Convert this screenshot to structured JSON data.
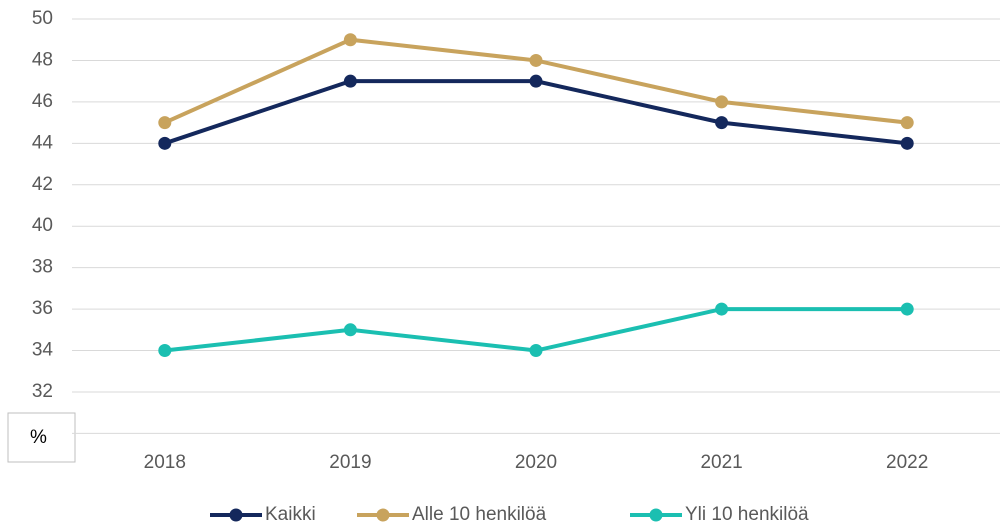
{
  "chart_data": {
    "type": "line",
    "y_label": "%",
    "categories": [
      "2018",
      "2019",
      "2020",
      "2021",
      "2022"
    ],
    "series": [
      {
        "name": "Kaikki",
        "color": "#14285c",
        "values": [
          44,
          47,
          47,
          45,
          44
        ]
      },
      {
        "name": "Alle 10 henkilöä",
        "color": "#c8a35d",
        "values": [
          45,
          49,
          48,
          46,
          45
        ]
      },
      {
        "name": "Yli 10 henkilöä",
        "color": "#1bbfb1",
        "values": [
          34,
          35,
          34,
          36,
          36
        ]
      }
    ],
    "ylim": [
      30,
      50
    ],
    "yticks": [
      32,
      34,
      36,
      38,
      40,
      42,
      44,
      46,
      48,
      50
    ],
    "grid": true,
    "legend": "bottom"
  }
}
